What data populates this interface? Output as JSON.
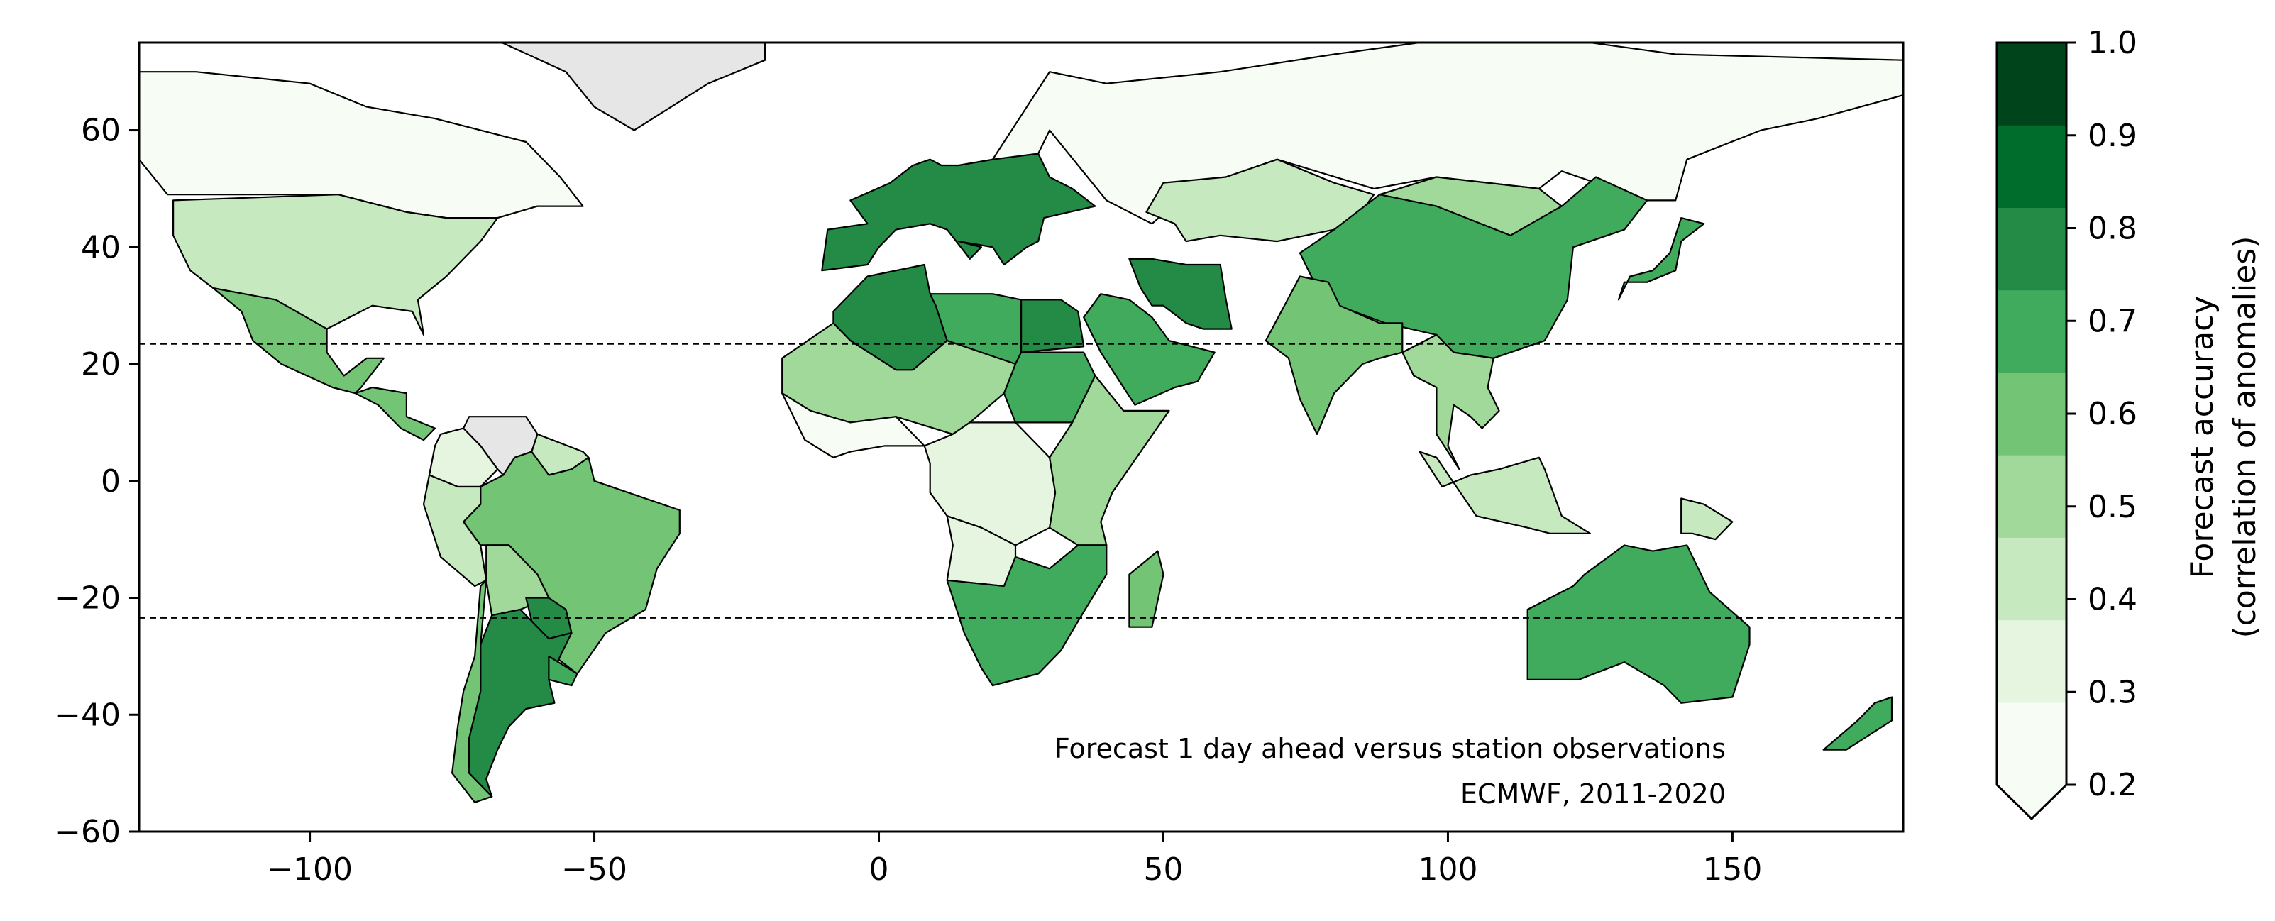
{
  "chart_data": {
    "type": "choropleth-map",
    "projection": "PlateCarree (longitude / latitude)",
    "xlim": [
      -130,
      180
    ],
    "ylim": [
      -60,
      75
    ],
    "x_ticks": [
      {
        "value": -100,
        "label": "−100"
      },
      {
        "value": -50,
        "label": "−50"
      },
      {
        "value": 0,
        "label": "0"
      },
      {
        "value": 50,
        "label": "50"
      },
      {
        "value": 100,
        "label": "100"
      },
      {
        "value": 150,
        "label": "150"
      }
    ],
    "y_ticks": [
      {
        "value": 60,
        "label": "60"
      },
      {
        "value": 40,
        "label": "40"
      },
      {
        "value": 20,
        "label": "20"
      },
      {
        "value": 0,
        "label": "0"
      },
      {
        "value": -20,
        "label": "−20"
      },
      {
        "value": -40,
        "label": "−40"
      },
      {
        "value": -60,
        "label": "−60"
      }
    ],
    "reference_lines": [
      {
        "lat": 23.44,
        "style": "dashed"
      },
      {
        "lat": -23.44,
        "style": "dashed"
      }
    ],
    "annotations": [
      "Forecast 1 day ahead versus station observations",
      "ECMWF, 2011-2020"
    ],
    "colorbar": {
      "label_line1": "Forecast accuracy",
      "label_line2": "(correlation of anomalies)",
      "boundaries": [
        0.2,
        0.3,
        0.4,
        0.5,
        0.6,
        0.7,
        0.8,
        0.9,
        1.0
      ],
      "tick_labels": [
        "0.2",
        "0.3",
        "0.4",
        "0.5",
        "0.6",
        "0.7",
        "0.8",
        "0.9",
        "1.0"
      ],
      "colors": [
        "#f7fcf5",
        "#e5f5e0",
        "#c7e9c0",
        "#a1d99b",
        "#74c476",
        "#41ab5d",
        "#238b45",
        "#006d2c",
        "#00441b"
      ],
      "extend": "min",
      "no_data_color": "#e6e6e6"
    },
    "regions": [
      {
        "name": "Canada",
        "value": 0.22
      },
      {
        "name": "United States",
        "value": 0.45
      },
      {
        "name": "Mexico",
        "value": 0.65
      },
      {
        "name": "Central America",
        "value": 0.65
      },
      {
        "name": "Greenland",
        "value": null
      },
      {
        "name": "Venezuela",
        "value": null
      },
      {
        "name": "Colombia",
        "value": 0.35
      },
      {
        "name": "Guianas",
        "value": 0.4
      },
      {
        "name": "Brazil",
        "value": 0.65
      },
      {
        "name": "Peru",
        "value": 0.45
      },
      {
        "name": "Bolivia",
        "value": 0.55
      },
      {
        "name": "Paraguay",
        "value": 0.85
      },
      {
        "name": "Argentina",
        "value": 0.85
      },
      {
        "name": "Chile",
        "value": 0.6
      },
      {
        "name": "Uruguay",
        "value": 0.75
      },
      {
        "name": "Europe",
        "value": 0.85
      },
      {
        "name": "Russia",
        "value": 0.22
      },
      {
        "name": "Kazakhstan",
        "value": 0.45
      },
      {
        "name": "Mongolia",
        "value": 0.55
      },
      {
        "name": "China",
        "value": 0.75
      },
      {
        "name": "Japan",
        "value": 0.75
      },
      {
        "name": "Iran",
        "value": 0.85
      },
      {
        "name": "Saudi Arabia",
        "value": 0.75
      },
      {
        "name": "India",
        "value": 0.65
      },
      {
        "name": "Southeast Asia",
        "value": 0.55
      },
      {
        "name": "Indonesia",
        "value": 0.45
      },
      {
        "name": "Papua New Guinea",
        "value": 0.45
      },
      {
        "name": "Algeria",
        "value": 0.85
      },
      {
        "name": "Egypt",
        "value": 0.85
      },
      {
        "name": "Libya",
        "value": 0.75
      },
      {
        "name": "Sudan",
        "value": 0.75
      },
      {
        "name": "Sahel",
        "value": 0.55
      },
      {
        "name": "West Africa coast",
        "value": 0.22
      },
      {
        "name": "Central Africa",
        "value": 0.35
      },
      {
        "name": "East Africa",
        "value": 0.5
      },
      {
        "name": "Angola",
        "value": 0.35
      },
      {
        "name": "Southern Africa",
        "value": 0.75
      },
      {
        "name": "Madagascar",
        "value": 0.65
      },
      {
        "name": "Australia",
        "value": 0.75
      },
      {
        "name": "New Zealand",
        "value": 0.75
      }
    ]
  }
}
